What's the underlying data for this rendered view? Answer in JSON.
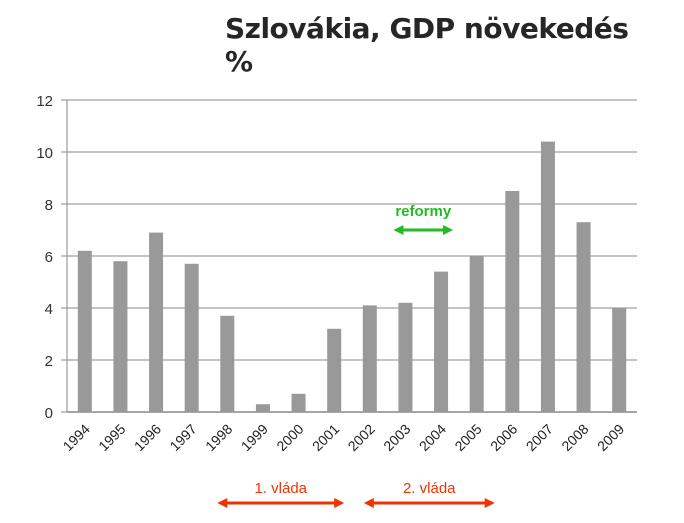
{
  "chart_data": {
    "type": "bar",
    "title": "Szlovákia, GDP növekedés %",
    "xlabel": "",
    "ylabel": "",
    "categories": [
      "1994",
      "1995",
      "1996",
      "1997",
      "1998",
      "1999",
      "2000",
      "2001",
      "2002",
      "2003",
      "2004",
      "2005",
      "2006",
      "2007",
      "2008",
      "2009"
    ],
    "values": [
      6.2,
      5.8,
      6.9,
      5.7,
      3.7,
      0.3,
      0.7,
      3.2,
      4.1,
      4.2,
      5.4,
      6.0,
      8.5,
      10.4,
      7.3,
      4.0
    ],
    "ylim": [
      0,
      12
    ],
    "yticks": [
      "0",
      "2",
      "4",
      "6",
      "8",
      "10",
      "12"
    ],
    "grid": true,
    "bar_color": "#999999",
    "annotations": [
      {
        "text": "reformy",
        "color": "#22bb22",
        "from": "2003",
        "to": "2004",
        "arrow_y": 7.0
      },
      {
        "text": "1. vláda",
        "color": "#ee3300",
        "from": "1998",
        "to": "2001"
      },
      {
        "text": "2. vláda",
        "color": "#ee3300",
        "from": "2002",
        "to": "2005"
      }
    ]
  }
}
